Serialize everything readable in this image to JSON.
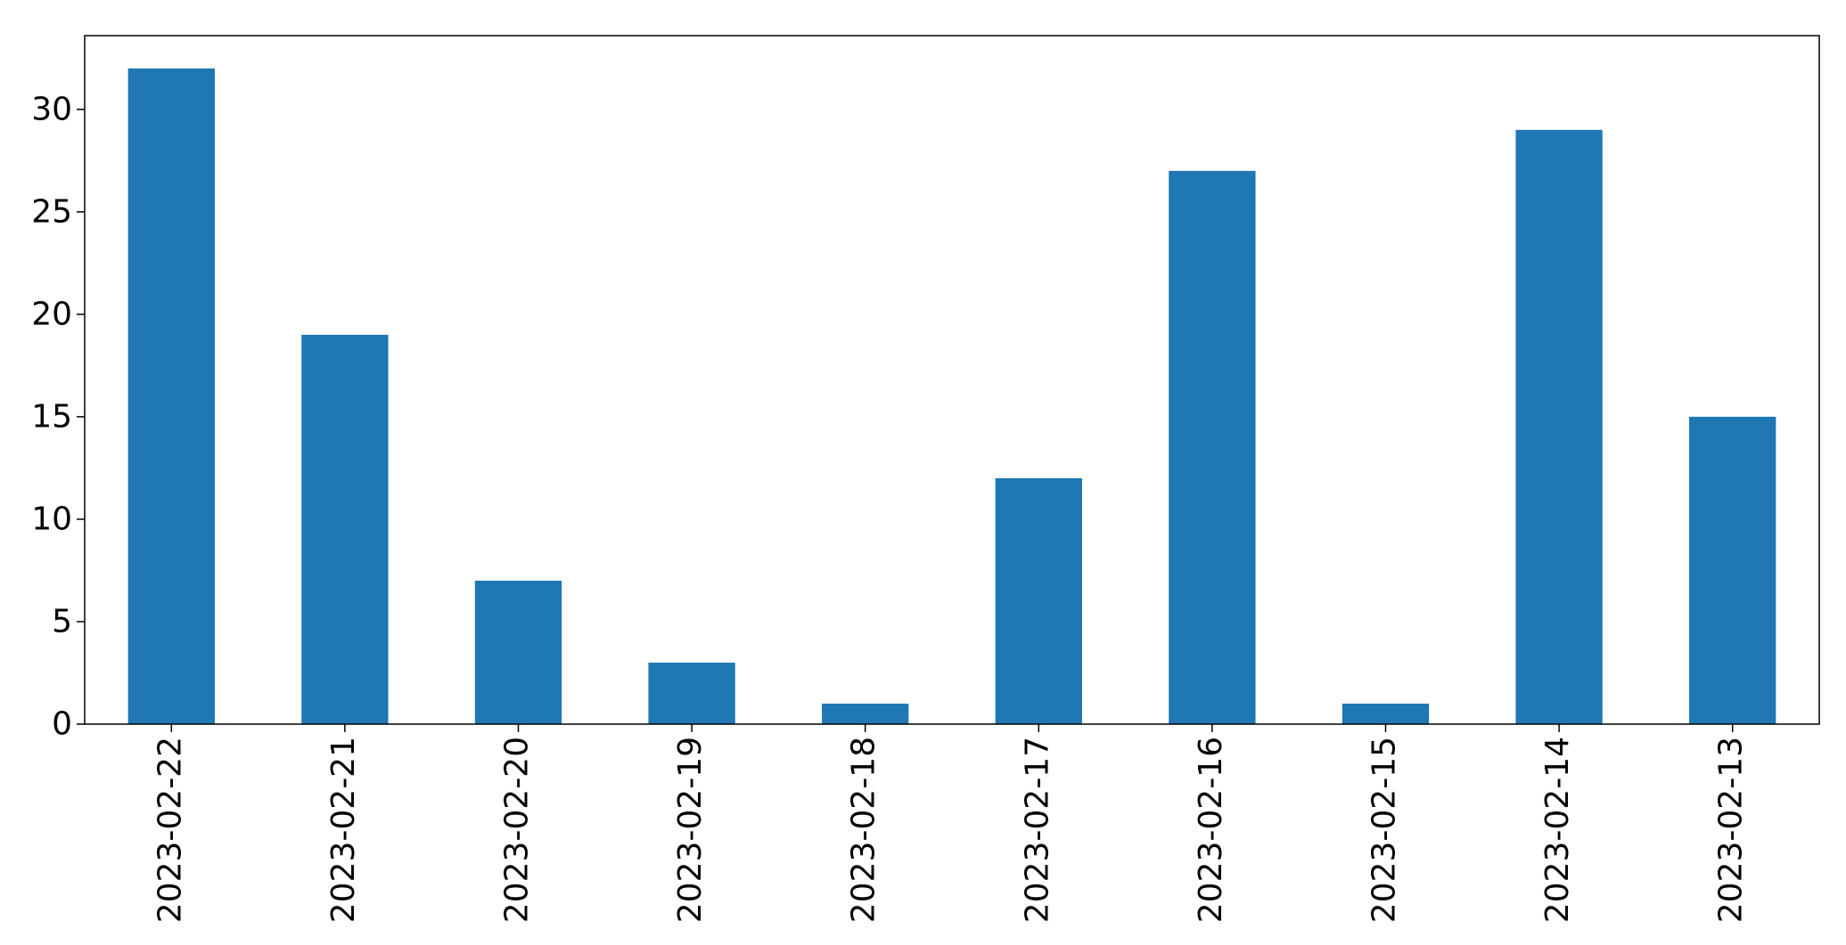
{
  "chart_data": {
    "type": "bar",
    "title": "",
    "xlabel": "",
    "ylabel": "",
    "categories": [
      "2023-02-22",
      "2023-02-21",
      "2023-02-20",
      "2023-02-19",
      "2023-02-18",
      "2023-02-17",
      "2023-02-16",
      "2023-02-15",
      "2023-02-14",
      "2023-02-13"
    ],
    "values": [
      32,
      19,
      7,
      3,
      1,
      12,
      27,
      1,
      29,
      15
    ],
    "ylim": [
      0,
      33.6
    ],
    "yticks": [
      "0",
      "5",
      "10",
      "15",
      "20",
      "25",
      "30"
    ],
    "grid": false,
    "legend": false,
    "bar_color": "#1f77b4"
  }
}
